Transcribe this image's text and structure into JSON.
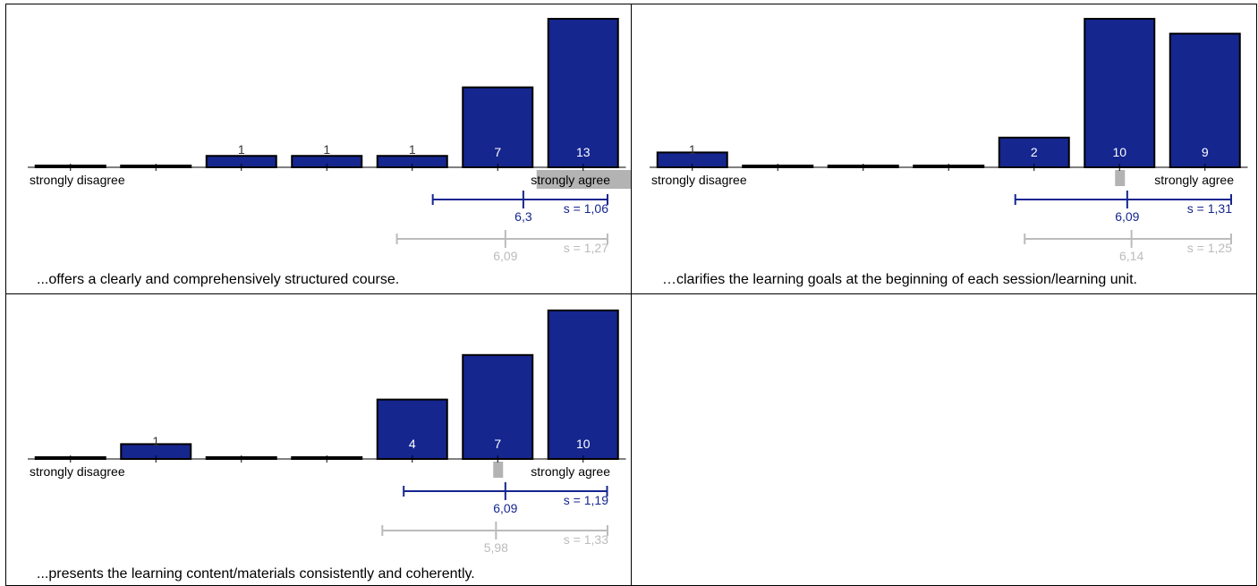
{
  "colors": {
    "bar_fill": "#15268f",
    "bar_stroke": "#000000",
    "course_stat": "#15268f",
    "reference_stat": "#bbbbbb",
    "highlight": "#b3b3b3",
    "axis": "#000000"
  },
  "chart_data": [
    {
      "type": "bar",
      "categories": [
        "1",
        "2",
        "3",
        "4",
        "5",
        "6",
        "7"
      ],
      "values": [
        0,
        0,
        1,
        1,
        1,
        7,
        13
      ],
      "left_label": "strongly disagree",
      "right_label": "strongly agree",
      "caption": "...offers a clearly and comprehensively structured course.",
      "highlight": {
        "type": "label-box",
        "category": "7"
      },
      "course_stats": {
        "mean": 6.3,
        "mean_label": "6,3",
        "sd": 1.06,
        "sd_label": "s = 1,06"
      },
      "reference_stats": {
        "mean": 6.09,
        "mean_label": "6,09",
        "sd": 1.27,
        "sd_label": "s = 1,27"
      }
    },
    {
      "type": "bar",
      "categories": [
        "1",
        "2",
        "3",
        "4",
        "5",
        "6",
        "7"
      ],
      "values": [
        1,
        0,
        0,
        0,
        2,
        10,
        9
      ],
      "left_label": "strongly disagree",
      "right_label": "strongly agree",
      "caption": "…clarifies the learning goals at the beginning of each session/learning unit.",
      "highlight": {
        "type": "marker",
        "category": "6"
      },
      "course_stats": {
        "mean": 6.09,
        "mean_label": "6,09",
        "sd": 1.31,
        "sd_label": "s = 1,31"
      },
      "reference_stats": {
        "mean": 6.14,
        "mean_label": "6,14",
        "sd": 1.25,
        "sd_label": "s = 1,25"
      }
    },
    {
      "type": "bar",
      "categories": [
        "1",
        "2",
        "3",
        "4",
        "5",
        "6",
        "7"
      ],
      "values": [
        0,
        1,
        0,
        0,
        4,
        7,
        10
      ],
      "left_label": "strongly disagree",
      "right_label": "strongly agree",
      "caption": "...presents the learning content/materials consistently and coherently.",
      "highlight": {
        "type": "marker",
        "category": "6"
      },
      "course_stats": {
        "mean": 6.09,
        "mean_label": "6,09",
        "sd": 1.19,
        "sd_label": "s = 1,19"
      },
      "reference_stats": {
        "mean": 5.98,
        "mean_label": "5,98",
        "sd": 1.33,
        "sd_label": "s = 1,33"
      }
    }
  ]
}
